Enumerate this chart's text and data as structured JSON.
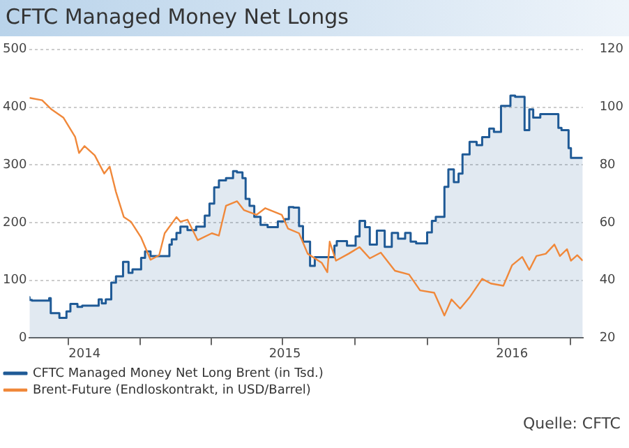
{
  "chart_data": {
    "type": "area",
    "title": "CFTC Managed Money Net Longs",
    "xlim": [
      "2014-08-13",
      "2016-07-17"
    ],
    "xticks": [
      {
        "value": "2014-10-01",
        "label": null
      },
      {
        "value": "2014-10-22",
        "label": "2014"
      },
      {
        "value": "2015-01-01",
        "label": null
      },
      {
        "value": "2015-04-01",
        "label": null
      },
      {
        "value": "2015-07-01",
        "label": null
      },
      {
        "value": "2015-07-04",
        "label": "2015"
      },
      {
        "value": "2015-10-01",
        "label": null
      },
      {
        "value": "2016-01-01",
        "label": null
      },
      {
        "value": "2016-04-01",
        "label": null
      },
      {
        "value": "2016-04-18",
        "label": "2016"
      },
      {
        "value": "2016-07-01",
        "label": null
      }
    ],
    "ylim": [
      0,
      500
    ],
    "yticks": [
      0,
      100,
      200,
      300,
      400,
      500
    ],
    "y2lim": [
      20,
      120
    ],
    "y2ticks": [
      20,
      40,
      60,
      80,
      100,
      120
    ],
    "grid": "y",
    "legend": "bottom left",
    "annotations": [
      "Quelle: CFTC"
    ],
    "series": [
      {
        "name": "CFTC Managed Money Net Long Brent (in Tsd.)",
        "color": "#1f5a96",
        "x": [
          "2014-08-13",
          "2014-08-13",
          "2014-08-16",
          "2014-08-16",
          "2014-09-07",
          "2014-09-07",
          "2014-09-09",
          "2014-09-09",
          "2014-09-20",
          "2014-09-20",
          "2014-09-29",
          "2014-09-29",
          "2014-10-04",
          "2014-10-04",
          "2014-10-13",
          "2014-10-13",
          "2014-10-19",
          "2014-10-19",
          "2014-11-09",
          "2014-11-09",
          "2014-11-13",
          "2014-11-13",
          "2014-11-18",
          "2014-11-18",
          "2014-11-25",
          "2014-11-25",
          "2014-12-01",
          "2014-12-01",
          "2014-12-10",
          "2014-12-10",
          "2014-12-17",
          "2014-12-17",
          "2014-12-22",
          "2014-12-22",
          "2015-01-02",
          "2015-01-02",
          "2015-01-07",
          "2015-01-07",
          "2015-01-14",
          "2015-01-14",
          "2015-01-18",
          "2015-01-18",
          "2015-02-07",
          "2015-02-07",
          "2015-02-10",
          "2015-02-10",
          "2015-02-16",
          "2015-02-16",
          "2015-02-21",
          "2015-02-21",
          "2015-03-02",
          "2015-03-02",
          "2015-03-13",
          "2015-03-13",
          "2015-03-24",
          "2015-03-24",
          "2015-03-30",
          "2015-03-30",
          "2015-04-05",
          "2015-04-05",
          "2015-04-11",
          "2015-04-11",
          "2015-04-20",
          "2015-04-20",
          "2015-04-29",
          "2015-04-29",
          "2015-05-04",
          "2015-05-04",
          "2015-05-11",
          "2015-05-11",
          "2015-05-15",
          "2015-05-15",
          "2015-05-20",
          "2015-05-20",
          "2015-05-26",
          "2015-05-26",
          "2015-06-03",
          "2015-06-03",
          "2015-06-12",
          "2015-06-12",
          "2015-06-25",
          "2015-06-25",
          "2015-07-04",
          "2015-07-04",
          "2015-07-09",
          "2015-07-09",
          "2015-07-15",
          "2015-07-15",
          "2015-07-22",
          "2015-07-22",
          "2015-07-27",
          "2015-07-27",
          "2015-08-05",
          "2015-08-05",
          "2015-08-11",
          "2015-08-11",
          "2015-08-14",
          "2015-08-14",
          "2015-09-05",
          "2015-09-05",
          "2015-09-08",
          "2015-09-08",
          "2015-09-21",
          "2015-09-21",
          "2015-10-02",
          "2015-10-02",
          "2015-10-07",
          "2015-10-07",
          "2015-10-14",
          "2015-10-14",
          "2015-10-20",
          "2015-10-20",
          "2015-10-29",
          "2015-10-29",
          "2015-11-08",
          "2015-11-08",
          "2015-11-17",
          "2015-11-17",
          "2015-11-25",
          "2015-11-25",
          "2015-12-04",
          "2015-12-04",
          "2015-12-11",
          "2015-12-11",
          "2015-12-18",
          "2015-12-18",
          "2016-01-01",
          "2016-01-01",
          "2016-01-07",
          "2016-01-07",
          "2016-01-12",
          "2016-01-12",
          "2016-01-23",
          "2016-01-23",
          "2016-01-28",
          "2016-01-28",
          "2016-02-04",
          "2016-02-04",
          "2016-02-10",
          "2016-02-10",
          "2016-02-15",
          "2016-02-15",
          "2016-02-24",
          "2016-02-24",
          "2016-03-04",
          "2016-03-04",
          "2016-03-11",
          "2016-03-11",
          "2016-03-20",
          "2016-03-20",
          "2016-03-26",
          "2016-03-26",
          "2016-04-04",
          "2016-04-04",
          "2016-04-16",
          "2016-04-16",
          "2016-04-22",
          "2016-04-22",
          "2016-05-04",
          "2016-05-04",
          "2016-05-10",
          "2016-05-10",
          "2016-05-15",
          "2016-05-15",
          "2016-05-24",
          "2016-05-24",
          "2016-06-09",
          "2016-06-09",
          "2016-06-16",
          "2016-06-16",
          "2016-06-20",
          "2016-06-20",
          "2016-06-29",
          "2016-06-29",
          "2016-07-02",
          "2016-07-02",
          "2016-07-08",
          "2016-07-08",
          "2016-07-17"
        ],
        "values": [
          71,
          66,
          66,
          65,
          65,
          69,
          69,
          43,
          43,
          35,
          35,
          46,
          46,
          59,
          59,
          54,
          54,
          56,
          56,
          67,
          67,
          60,
          60,
          67,
          67,
          96,
          96,
          107,
          107,
          132,
          132,
          113,
          113,
          119,
          119,
          139,
          139,
          150,
          150,
          142,
          142,
          142,
          142,
          162,
          162,
          171,
          171,
          182,
          182,
          193,
          193,
          187,
          187,
          193,
          193,
          212,
          212,
          233,
          233,
          261,
          261,
          273,
          273,
          277,
          277,
          289,
          289,
          287,
          287,
          277,
          277,
          241,
          241,
          229,
          229,
          210,
          210,
          196,
          196,
          192,
          192,
          202,
          202,
          206,
          206,
          227,
          227,
          226,
          226,
          194,
          194,
          167,
          167,
          125,
          125,
          140,
          140,
          140,
          140,
          160,
          160,
          168,
          168,
          160,
          160,
          176,
          176,
          203,
          203,
          192,
          192,
          162,
          162,
          186,
          186,
          158,
          158,
          182,
          182,
          172,
          172,
          182,
          182,
          167,
          167,
          164,
          164,
          183,
          183,
          203,
          203,
          210,
          210,
          262,
          262,
          292,
          292,
          270,
          270,
          285,
          285,
          318,
          318,
          340,
          340,
          334,
          334,
          348,
          348,
          363,
          363,
          357,
          357,
          402,
          402,
          420,
          420,
          418,
          418,
          360,
          360,
          396,
          396,
          382,
          382,
          388,
          388,
          388,
          388,
          364,
          364,
          360,
          360,
          329,
          329,
          312,
          312,
          312,
          312
        ]
      },
      {
        "name": "Brent-Future (Endloskontrakt, in USD/Barrel)",
        "type": "line",
        "axis": "y2",
        "color": "#f0883a",
        "x": [
          "2014-08-13",
          "2014-08-29",
          "2014-09-10",
          "2014-09-25",
          "2014-10-10",
          "2014-10-15",
          "2014-10-22",
          "2014-11-04",
          "2014-11-16",
          "2014-11-23",
          "2014-12-01",
          "2014-12-11",
          "2014-12-20",
          "2015-01-02",
          "2015-01-14",
          "2015-01-25",
          "2015-02-01",
          "2015-02-16",
          "2015-02-21",
          "2015-03-02",
          "2015-03-15",
          "2015-04-02",
          "2015-04-11",
          "2015-04-20",
          "2015-05-04",
          "2015-05-13",
          "2015-05-29",
          "2015-06-09",
          "2015-06-30",
          "2015-07-08",
          "2015-07-22",
          "2015-08-02",
          "2015-08-20",
          "2015-08-27",
          "2015-08-30",
          "2015-09-07",
          "2015-09-23",
          "2015-10-07",
          "2015-10-20",
          "2015-11-03",
          "2015-11-21",
          "2015-12-09",
          "2015-12-23",
          "2016-01-10",
          "2016-01-23",
          "2016-02-01",
          "2016-02-12",
          "2016-02-24",
          "2016-03-11",
          "2016-03-22",
          "2016-04-07",
          "2016-04-18",
          "2016-05-01",
          "2016-05-10",
          "2016-05-19",
          "2016-05-31",
          "2016-06-11",
          "2016-06-18",
          "2016-06-27",
          "2016-07-02",
          "2016-07-10",
          "2016-07-17"
        ],
        "values": [
          103.2,
          102.4,
          99.2,
          96.4,
          89.7,
          84.1,
          86.5,
          83.3,
          77,
          79.4,
          70.6,
          61.9,
          60.3,
          54.8,
          47.1,
          48.7,
          56.3,
          61.9,
          60.3,
          61,
          53.9,
          56.3,
          55.5,
          65.8,
          67.4,
          64.3,
          62.7,
          65,
          62.7,
          57.9,
          56.3,
          49.2,
          46,
          42.8,
          53.4,
          46.8,
          49.2,
          51.5,
          47.6,
          49.6,
          43.3,
          42,
          36.5,
          35.7,
          27.8,
          33.4,
          30.2,
          34.1,
          40.5,
          38.9,
          38.1,
          45.2,
          48.1,
          43.6,
          48.4,
          49.2,
          52.4,
          48.4,
          50.8,
          46.8,
          48.7,
          46.8
        ]
      }
    ]
  }
}
